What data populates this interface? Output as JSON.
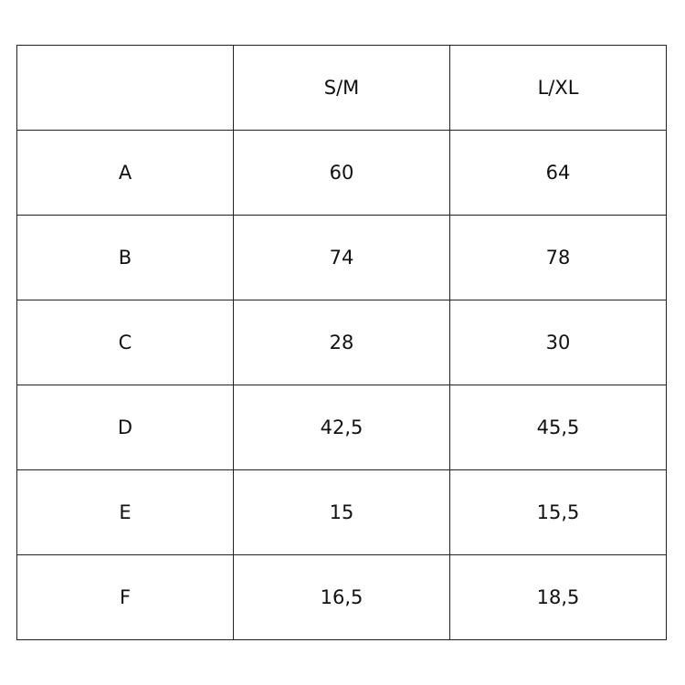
{
  "table": {
    "headers": [
      "",
      "S/M",
      "L/XL"
    ],
    "rows": [
      [
        "A",
        "60",
        "64"
      ],
      [
        "B",
        "74",
        "78"
      ],
      [
        "C",
        "28",
        "30"
      ],
      [
        "D",
        "42,5",
        "45,5"
      ],
      [
        "E",
        "15",
        "15,5"
      ],
      [
        "F",
        "16,5",
        "18,5"
      ]
    ]
  }
}
